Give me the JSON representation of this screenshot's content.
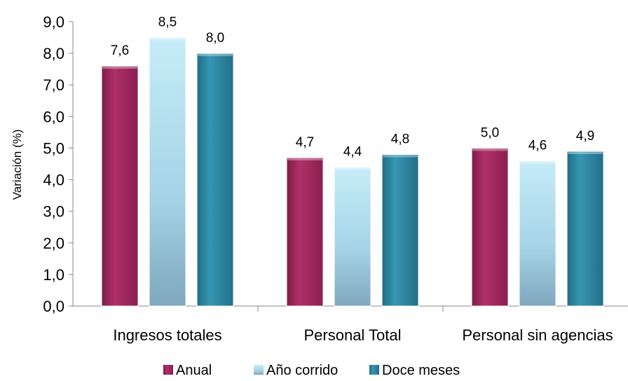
{
  "chart_data": {
    "type": "bar",
    "categories": [
      "Ingresos totales",
      "Personal Total",
      "Personal sin agencias"
    ],
    "series": [
      {
        "name": "Anual",
        "values": [
          7.6,
          4.7,
          5.0
        ],
        "color": "#a8285f"
      },
      {
        "name": "Año corrido",
        "values": [
          8.5,
          4.4,
          4.6
        ],
        "color": "#a9d8ea"
      },
      {
        "name": "Doce meses",
        "values": [
          8.0,
          4.8,
          4.9
        ],
        "color": "#2a87a2"
      }
    ],
    "data_labels": [
      [
        "7,6",
        "8,5",
        "8,0"
      ],
      [
        "4,7",
        "4,4",
        "4,8"
      ],
      [
        "5,0",
        "4,6",
        "4,9"
      ]
    ],
    "ylabel": "Variación (%)",
    "ylim": [
      0,
      9
    ],
    "yticks": [
      "0,0",
      "1,0",
      "2,0",
      "3,0",
      "4,0",
      "5,0",
      "6,0",
      "7,0",
      "8,0",
      "9,0"
    ],
    "legend_position": "bottom",
    "grid": false
  }
}
